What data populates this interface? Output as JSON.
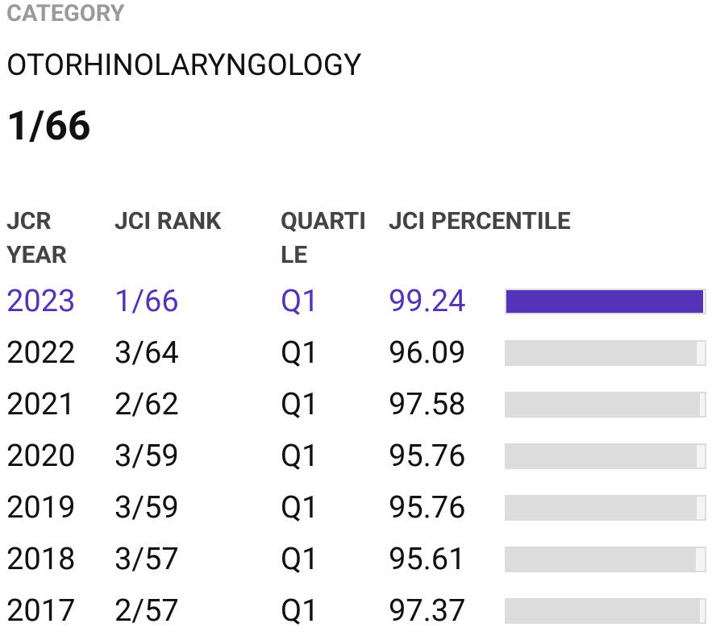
{
  "header": {
    "label": "CATEGORY",
    "category": "OTORHINOLARYNGOLOGY",
    "rank": "1/66"
  },
  "table": {
    "columns": [
      "JCR YEAR",
      "JCI RANK",
      "QUARTILE",
      "JCI PERCENTILE"
    ],
    "percentile_max": 100,
    "rows": [
      {
        "year": "2023",
        "rank": "1/66",
        "quartile": "Q1",
        "percentile": 99.24,
        "color": "#5533b8",
        "bar_color": "#5533b8"
      },
      {
        "year": "2022",
        "rank": "3/64",
        "quartile": "Q1",
        "percentile": 96.09,
        "color": "#111111",
        "bar_color": "#dcdcdc"
      },
      {
        "year": "2021",
        "rank": "2/62",
        "quartile": "Q1",
        "percentile": 97.58,
        "color": "#111111",
        "bar_color": "#dcdcdc"
      },
      {
        "year": "2020",
        "rank": "3/59",
        "quartile": "Q1",
        "percentile": 95.76,
        "color": "#111111",
        "bar_color": "#dcdcdc"
      },
      {
        "year": "2019",
        "rank": "3/59",
        "quartile": "Q1",
        "percentile": 95.76,
        "color": "#111111",
        "bar_color": "#dcdcdc"
      },
      {
        "year": "2018",
        "rank": "3/57",
        "quartile": "Q1",
        "percentile": 95.61,
        "color": "#111111",
        "bar_color": "#dcdcdc"
      },
      {
        "year": "2017",
        "rank": "2/57",
        "quartile": "Q1",
        "percentile": 97.37,
        "color": "#111111",
        "bar_color": "#dcdcdc"
      }
    ]
  }
}
